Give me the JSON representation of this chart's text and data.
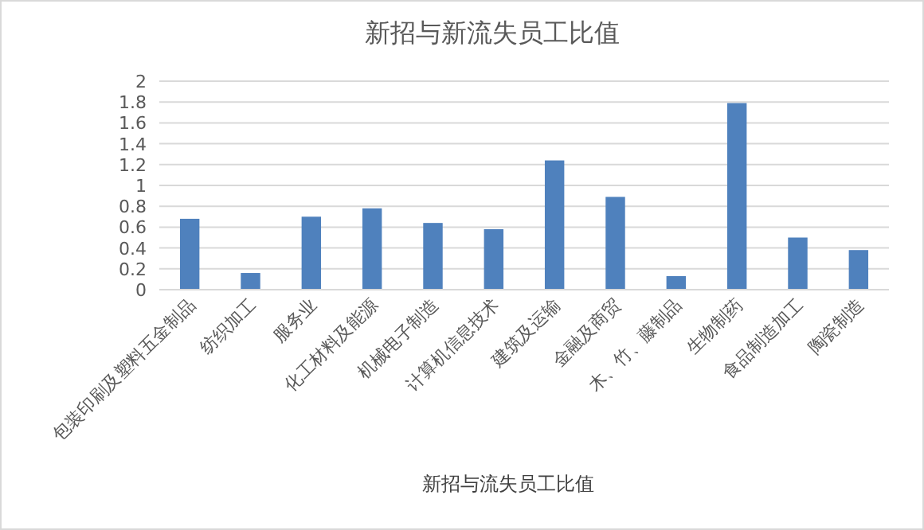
{
  "chart_data": {
    "type": "bar",
    "title": "新招与新流失员工比值",
    "xlabel": "新招与流失员工比值",
    "categories": [
      "包装印刷及塑料五金制品",
      "纺织加工",
      "服务业",
      "化工材料及能源",
      "机械电子制造",
      "计算机信息技术",
      "建筑及运输",
      "金融及商贸",
      "木、竹、藤制品",
      "生物制药",
      "食品制造加工",
      "陶瓷制造"
    ],
    "values": [
      0.68,
      0.16,
      0.7,
      0.78,
      0.64,
      0.58,
      1.24,
      0.89,
      0.13,
      1.79,
      0.5,
      0.38
    ],
    "color": "#4f81bd",
    "ylim": [
      0,
      2
    ],
    "yticks": [
      0,
      0.2,
      0.4,
      0.6,
      0.8,
      1,
      1.2,
      1.4,
      1.6,
      1.8,
      2
    ],
    "grid": "y"
  }
}
